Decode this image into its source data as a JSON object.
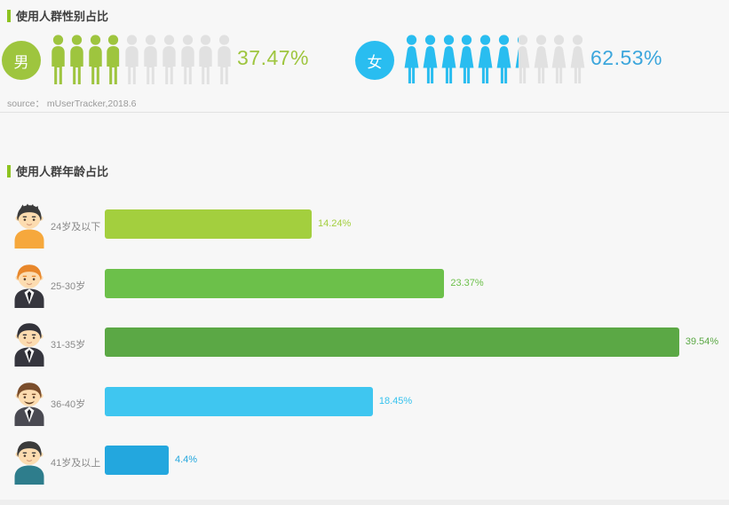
{
  "colors": {
    "background": "#f7f7f7",
    "divider": "#e2e2e2",
    "title_text": "#3f3f3f",
    "label_text": "#8a8a8a",
    "accent_green": "#8dc320",
    "icon_off": "#e1e1e1"
  },
  "chart_data": [
    {
      "type": "pictogram",
      "title": "使用人群性别占比",
      "source": "source：  mUserTracker,2018.6",
      "icons_total_per_series": 10,
      "icon_off_color": "#e1e1e1",
      "series": [
        {
          "key": "male",
          "name": "男",
          "value": 37.47,
          "label": "37.47%",
          "color": "#9ec53e",
          "label_color": "#9ec53e",
          "icon": "male-figure"
        },
        {
          "key": "female",
          "name": "女",
          "value": 62.53,
          "label": "62.53%",
          "color": "#29bdf0",
          "label_color": "#3ca6dc",
          "icon": "female-figure"
        }
      ]
    },
    {
      "type": "bar",
      "orientation": "horizontal",
      "title": "使用人群年龄占比",
      "categories": [
        "24岁及以下",
        "25-30岁",
        "31-35岁",
        "36-40岁",
        "41岁及以上"
      ],
      "values": [
        14.24,
        23.37,
        39.54,
        18.45,
        4.4
      ],
      "value_labels": [
        "14.24%",
        "23.37%",
        "39.54%",
        "18.45%",
        "4.4%"
      ],
      "bar_colors": [
        "#a3cf3e",
        "#6cc04a",
        "#5ba845",
        "#3fc6f0",
        "#23a7de"
      ],
      "value_colors": [
        "#a3cf3e",
        "#6cc04a",
        "#5ba845",
        "#35c2ee",
        "#23a7de"
      ],
      "xlim": [
        0,
        40
      ],
      "grid": false,
      "legend": false,
      "avatars": [
        {
          "name": "young-man-orange-shirt-avatar",
          "hair": "#3b3b3b",
          "hair_style": "spiky",
          "skin": "#fcdcb0",
          "outfit": "#f6a83c",
          "outfit_style": "shirt"
        },
        {
          "name": "orange-hair-suit-man-avatar",
          "hair": "#e8872b",
          "hair_style": "side",
          "skin": "#fcdcb0",
          "outfit": "#36363e",
          "outfit_style": "suit"
        },
        {
          "name": "black-hair-suit-man-avatar",
          "hair": "#33333a",
          "hair_style": "side",
          "skin": "#fcdcb0",
          "outfit": "#36363e",
          "outfit_style": "suit"
        },
        {
          "name": "mustache-suit-man-avatar",
          "hair": "#7a4d2b",
          "hair_style": "side",
          "skin": "#fcdcb0",
          "outfit": "#4a4a52",
          "outfit_style": "suit",
          "mustache": "#5d3a1f"
        },
        {
          "name": "teal-shirt-man-avatar",
          "hair": "#3b3b3b",
          "hair_style": "side",
          "skin": "#fcdcb0",
          "outfit": "#2e7d8c",
          "outfit_style": "shirt"
        }
      ]
    }
  ]
}
